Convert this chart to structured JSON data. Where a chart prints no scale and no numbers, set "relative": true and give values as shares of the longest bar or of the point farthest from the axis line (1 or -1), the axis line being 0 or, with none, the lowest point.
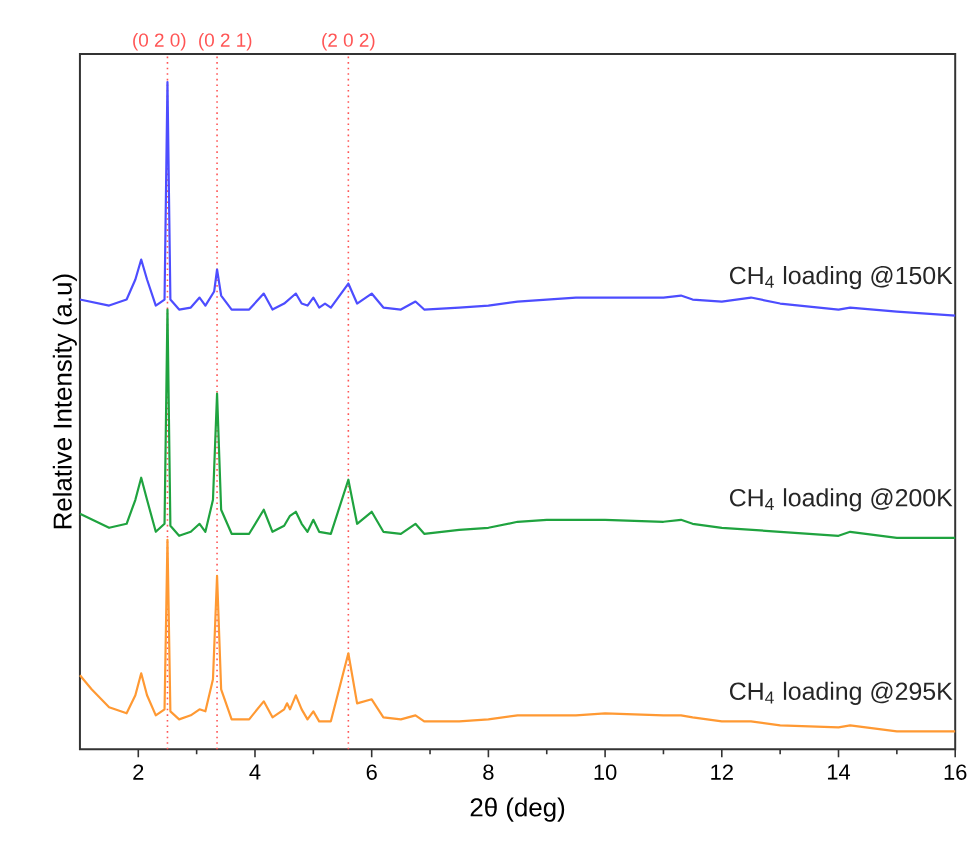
{
  "chart_data": {
    "type": "line",
    "relative": true,
    "xlabel": "2θ (deg)",
    "ylabel": "Relative Intensity (a.u)",
    "xlim": [
      1,
      16
    ],
    "xticks": [
      2,
      4,
      6,
      8,
      10,
      12,
      14,
      16
    ],
    "grid": false,
    "legend": false,
    "marker": "none",
    "line_style": "solid",
    "series": [
      {
        "name": "CH$_{4}$ loading @150K",
        "color": "#4d4dff",
        "x": [
          1.0,
          1.5,
          1.8,
          1.95,
          2.05,
          2.15,
          2.3,
          2.45,
          2.5,
          2.55,
          2.7,
          2.9,
          3.05,
          3.15,
          3.3,
          3.35,
          3.42,
          3.6,
          3.9,
          4.15,
          4.3,
          4.5,
          4.7,
          4.8,
          4.9,
          5.0,
          5.1,
          5.2,
          5.3,
          5.6,
          5.75,
          6.0,
          6.2,
          6.5,
          6.75,
          6.9,
          7.5,
          8.0,
          8.5,
          9.0,
          9.5,
          10,
          10.5,
          11,
          11.3,
          11.5,
          12,
          12.5,
          13,
          14,
          14.2,
          15,
          16
        ],
        "values": [
          0.674,
          0.665,
          0.674,
          0.704,
          0.734,
          0.704,
          0.665,
          0.674,
          1,
          0.674,
          0.659,
          0.662,
          0.677,
          0.665,
          0.686,
          0.719,
          0.68,
          0.659,
          0.659,
          0.683,
          0.659,
          0.668,
          0.683,
          0.668,
          0.665,
          0.677,
          0.662,
          0.668,
          0.662,
          0.698,
          0.668,
          0.683,
          0.662,
          0.659,
          0.671,
          0.659,
          0.662,
          0.665,
          0.671,
          0.674,
          0.677,
          0.677,
          0.677,
          0.677,
          0.68,
          0.674,
          0.671,
          0.677,
          0.668,
          0.659,
          0.662,
          0.656,
          0.65
        ]
      },
      {
        "name": "CH$_{4}$ loading @200K",
        "color": "#1fa33f",
        "x": [
          1.0,
          1.5,
          1.8,
          1.95,
          2.05,
          2.15,
          2.3,
          2.45,
          2.5,
          2.55,
          2.7,
          2.9,
          3.05,
          3.15,
          3.28,
          3.35,
          3.42,
          3.6,
          3.9,
          4.15,
          4.3,
          4.5,
          4.6,
          4.7,
          4.8,
          4.9,
          5.0,
          5.1,
          5.3,
          5.6,
          5.75,
          6.0,
          6.2,
          6.5,
          6.75,
          6.9,
          7.5,
          8.0,
          8.5,
          9.0,
          9.5,
          10,
          11,
          11.3,
          11.5,
          12,
          13,
          14,
          14.2,
          15,
          16
        ],
        "values": [
          0.353,
          0.332,
          0.338,
          0.374,
          0.407,
          0.374,
          0.326,
          0.338,
          0.659,
          0.335,
          0.32,
          0.326,
          0.338,
          0.326,
          0.374,
          0.533,
          0.359,
          0.323,
          0.323,
          0.359,
          0.326,
          0.335,
          0.35,
          0.356,
          0.338,
          0.326,
          0.344,
          0.326,
          0.323,
          0.404,
          0.338,
          0.356,
          0.326,
          0.323,
          0.338,
          0.323,
          0.329,
          0.332,
          0.341,
          0.344,
          0.344,
          0.344,
          0.341,
          0.344,
          0.338,
          0.332,
          0.326,
          0.32,
          0.326,
          0.317,
          0.317
        ]
      },
      {
        "name": "CH$_{4}$ loading @295K",
        "color": "#ff9933",
        "x": [
          1.0,
          1.2,
          1.5,
          1.8,
          1.95,
          2.05,
          2.15,
          2.3,
          2.45,
          2.5,
          2.55,
          2.7,
          2.9,
          3.05,
          3.15,
          3.28,
          3.35,
          3.42,
          3.6,
          3.9,
          4.15,
          4.3,
          4.5,
          4.55,
          4.6,
          4.7,
          4.8,
          4.9,
          5.0,
          5.1,
          5.3,
          5.6,
          5.75,
          6.0,
          6.2,
          6.5,
          6.75,
          6.9,
          7.5,
          8.0,
          8.5,
          9.0,
          9.5,
          10,
          11,
          11.3,
          11.5,
          12,
          12.5,
          13,
          14,
          14.2,
          15,
          16
        ],
        "values": [
          0.111,
          0.09,
          0.063,
          0.054,
          0.081,
          0.114,
          0.081,
          0.051,
          0.06,
          0.314,
          0.057,
          0.045,
          0.051,
          0.06,
          0.057,
          0.105,
          0.26,
          0.09,
          0.045,
          0.045,
          0.072,
          0.048,
          0.06,
          0.069,
          0.06,
          0.081,
          0.06,
          0.045,
          0.057,
          0.042,
          0.042,
          0.144,
          0.069,
          0.075,
          0.048,
          0.045,
          0.051,
          0.042,
          0.042,
          0.045,
          0.051,
          0.051,
          0.051,
          0.054,
          0.051,
          0.051,
          0.048,
          0.042,
          0.042,
          0.036,
          0.033,
          0.036,
          0.027,
          0.027
        ]
      }
    ],
    "ref_lines": [
      {
        "axis": "x",
        "value": 2.5,
        "color": "#ff5555",
        "line_style": "dotted"
      },
      {
        "axis": "x",
        "value": 3.35,
        "color": "#ff5555",
        "line_style": "dotted"
      },
      {
        "axis": "x",
        "value": 5.6,
        "color": "#ff5555",
        "line_style": "dotted"
      }
    ],
    "annotations": [
      "(0 2 0)",
      "(0 2 1)",
      "(2 0 2)"
    ]
  }
}
